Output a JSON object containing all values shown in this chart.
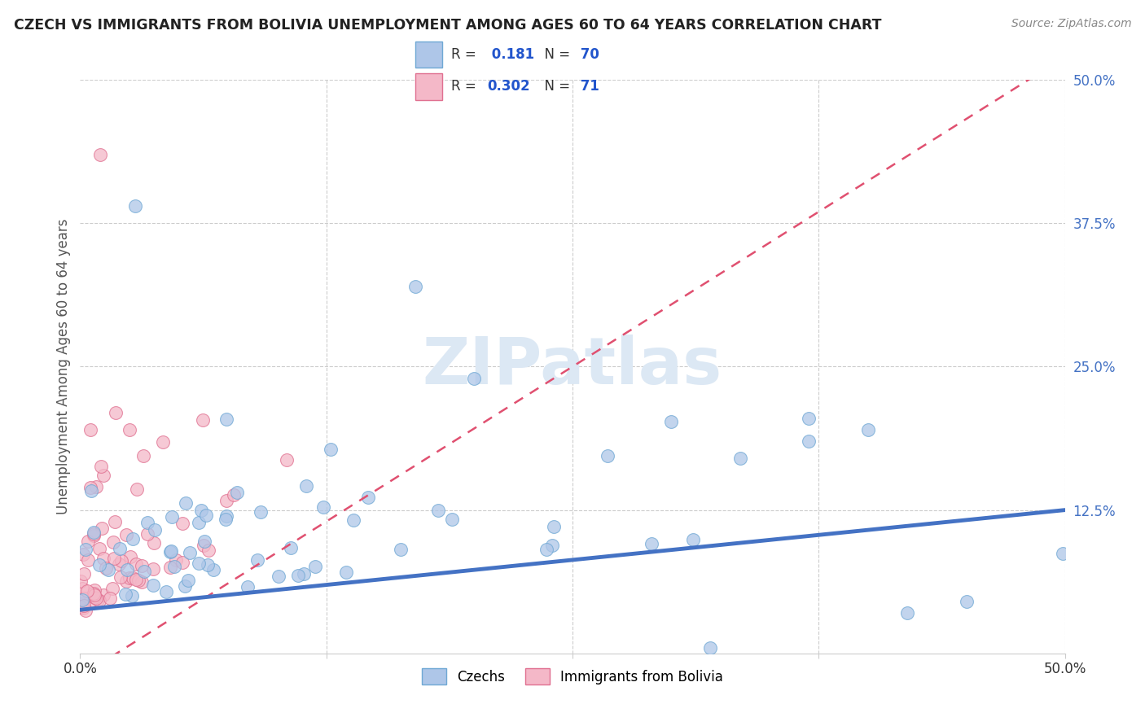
{
  "title": "CZECH VS IMMIGRANTS FROM BOLIVIA UNEMPLOYMENT AMONG AGES 60 TO 64 YEARS CORRELATION CHART",
  "source": "Source: ZipAtlas.com",
  "ylabel": "Unemployment Among Ages 60 to 64 years",
  "xlim": [
    0,
    0.5
  ],
  "ylim": [
    0,
    0.5
  ],
  "czechs_R": 0.181,
  "czechs_N": 70,
  "bolivia_R": 0.302,
  "bolivia_N": 71,
  "czechs_color": "#aec6e8",
  "czechs_edge": "#6fa8d4",
  "bolivia_color": "#f4b8c8",
  "bolivia_edge": "#e07090",
  "czechs_line_color": "#4472c4",
  "bolivia_line_color": "#e05070",
  "background_color": "#ffffff",
  "grid_color": "#cccccc",
  "ytick_color": "#4472c4",
  "xtick_color": "#333333",
  "title_color": "#222222",
  "source_color": "#888888",
  "watermark_color": "#dce8f4",
  "legend_border_color": "#cccccc"
}
